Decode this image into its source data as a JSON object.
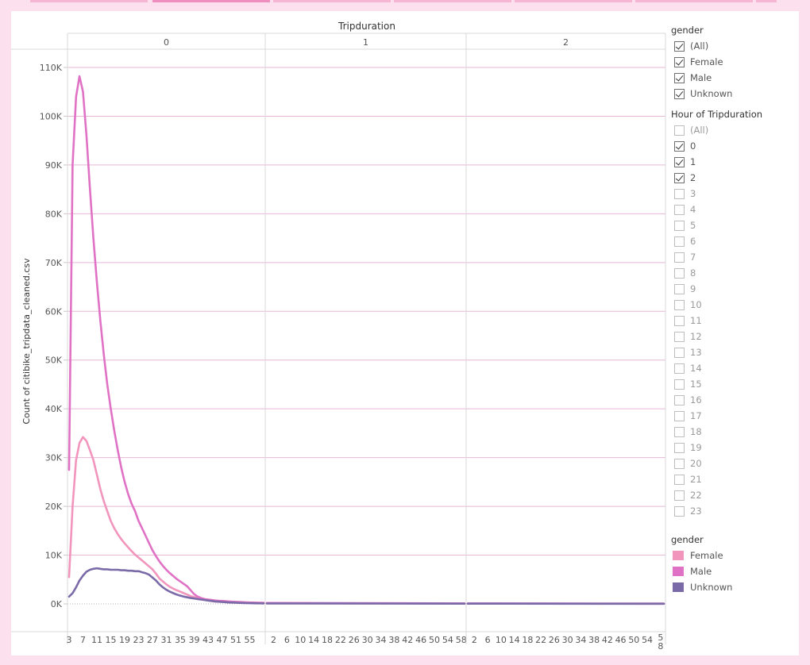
{
  "chart_data": {
    "type": "line",
    "column_header": "Tripduration",
    "ylabel": "Count of citibike_tripdata_cleaned.csv",
    "ylim": [
      0,
      115000
    ],
    "y_ticks": [
      0,
      10000,
      20000,
      30000,
      40000,
      50000,
      60000,
      70000,
      80000,
      90000,
      100000,
      110000
    ],
    "y_tick_labels": [
      "0K",
      "10K",
      "20K",
      "30K",
      "40K",
      "50K",
      "60K",
      "70K",
      "80K",
      "90K",
      "100K",
      "110K"
    ],
    "x_unit": "minute",
    "panels": [
      {
        "label": "0",
        "x_range": [
          3,
          59
        ],
        "x_tick_labels": [
          "3",
          "7",
          "11",
          "15",
          "19",
          "23",
          "27",
          "31",
          "35",
          "39",
          "43",
          "47",
          "51",
          "55"
        ]
      },
      {
        "label": "1",
        "x_range": [
          0,
          59
        ],
        "x_tick_labels": [
          "2",
          "6",
          "10",
          "14",
          "18",
          "22",
          "26",
          "30",
          "34",
          "38",
          "42",
          "46",
          "50",
          "54",
          "58"
        ]
      },
      {
        "label": "2",
        "x_range": [
          0,
          59
        ],
        "x_tick_labels": [
          "2",
          "6",
          "10",
          "14",
          "18",
          "22",
          "26",
          "30",
          "34",
          "38",
          "42",
          "46",
          "50",
          "54",
          "58"
        ]
      }
    ],
    "series": [
      {
        "name": "Female",
        "color": "#f195bc",
        "panel": "0",
        "x": [
          3,
          4,
          5,
          6,
          7,
          8,
          9,
          10,
          11,
          12,
          13,
          14,
          15,
          16,
          17,
          18,
          19,
          20,
          21,
          22,
          23,
          24,
          25,
          26,
          27,
          28,
          29,
          30,
          31,
          32,
          33,
          34,
          35,
          36,
          37,
          38,
          39,
          40,
          41,
          42,
          43,
          44,
          45,
          46,
          47,
          48,
          49,
          50,
          51,
          52,
          53,
          54,
          55,
          56,
          57,
          58,
          59
        ],
        "y": [
          5500,
          20000,
          29500,
          33000,
          34200,
          33400,
          31500,
          29500,
          26500,
          23500,
          21000,
          19000,
          17000,
          15500,
          14300,
          13300,
          12400,
          11600,
          10800,
          10100,
          9500,
          8900,
          8300,
          7700,
          7100,
          6200,
          5200,
          4600,
          4000,
          3500,
          3100,
          2800,
          2500,
          2200,
          1900,
          1600,
          1400,
          1200,
          1000,
          850,
          700,
          600,
          500,
          450,
          400,
          350,
          320,
          290,
          260,
          230,
          210,
          190,
          170,
          150,
          140,
          130,
          120
        ]
      },
      {
        "name": "Male",
        "color": "#e072c5",
        "panel": "0",
        "x": [
          3,
          4,
          5,
          6,
          7,
          8,
          9,
          10,
          11,
          12,
          13,
          14,
          15,
          16,
          17,
          18,
          19,
          20,
          21,
          22,
          23,
          24,
          25,
          26,
          27,
          28,
          29,
          30,
          31,
          32,
          33,
          34,
          35,
          36,
          37,
          38,
          39,
          40,
          41,
          42,
          43,
          44,
          45,
          46,
          47,
          48,
          49,
          50,
          51,
          52,
          53,
          54,
          55,
          56,
          57,
          58,
          59
        ],
        "y": [
          27500,
          90000,
          104000,
          108200,
          105000,
          96000,
          85000,
          75000,
          66000,
          58000,
          51000,
          45000,
          40000,
          35500,
          31500,
          28000,
          25000,
          22500,
          20500,
          19000,
          17000,
          15500,
          14000,
          12500,
          11000,
          9800,
          8700,
          7800,
          7000,
          6300,
          5700,
          5100,
          4600,
          4100,
          3600,
          2800,
          2000,
          1500,
          1200,
          1000,
          900,
          800,
          700,
          650,
          600,
          550,
          500,
          460,
          420,
          390,
          360,
          330,
          300,
          280,
          260,
          240,
          220
        ]
      },
      {
        "name": "Unknown",
        "color": "#7a6aa8",
        "panel": "0",
        "x": [
          3,
          4,
          5,
          6,
          7,
          8,
          9,
          10,
          11,
          12,
          13,
          14,
          15,
          16,
          17,
          18,
          19,
          20,
          21,
          22,
          23,
          24,
          25,
          26,
          27,
          28,
          29,
          30,
          31,
          32,
          33,
          34,
          35,
          36,
          37,
          38,
          39,
          40,
          41,
          42,
          43,
          44,
          45,
          46,
          47,
          48,
          49,
          50,
          51,
          52,
          53,
          54,
          55,
          56,
          57,
          58,
          59
        ],
        "y": [
          1500,
          2200,
          3400,
          4800,
          5800,
          6600,
          7000,
          7200,
          7300,
          7200,
          7100,
          7100,
          7000,
          7000,
          7000,
          6900,
          6900,
          6800,
          6800,
          6700,
          6700,
          6500,
          6300,
          6000,
          5400,
          4800,
          4000,
          3400,
          2900,
          2500,
          2200,
          1900,
          1700,
          1500,
          1350,
          1200,
          1100,
          1000,
          900,
          800,
          700,
          600,
          500,
          450,
          400,
          350,
          300,
          270,
          240,
          210,
          190,
          170,
          150,
          130,
          120,
          110,
          100
        ]
      },
      {
        "name": "Female",
        "color": "#f195bc",
        "panel": "1",
        "x": [
          0,
          59
        ],
        "y": [
          120,
          60
        ]
      },
      {
        "name": "Male",
        "color": "#e072c5",
        "panel": "1",
        "x": [
          0,
          59
        ],
        "y": [
          200,
          100
        ]
      },
      {
        "name": "Unknown",
        "color": "#7a6aa8",
        "panel": "1",
        "x": [
          0,
          59
        ],
        "y": [
          90,
          50
        ]
      },
      {
        "name": "Female",
        "color": "#f195bc",
        "panel": "2",
        "x": [
          0,
          59
        ],
        "y": [
          60,
          40
        ]
      },
      {
        "name": "Male",
        "color": "#e072c5",
        "panel": "2",
        "x": [
          0,
          59
        ],
        "y": [
          100,
          70
        ]
      },
      {
        "name": "Unknown",
        "color": "#7a6aa8",
        "panel": "2",
        "x": [
          0,
          59
        ],
        "y": [
          50,
          40
        ]
      }
    ],
    "grid": true,
    "legend_position": "right"
  },
  "filters": {
    "gender": {
      "title": "gender",
      "items": [
        {
          "label": "(All)",
          "checked": true
        },
        {
          "label": "Female",
          "checked": true
        },
        {
          "label": "Male",
          "checked": true
        },
        {
          "label": "Unknown",
          "checked": true
        }
      ]
    },
    "hour": {
      "title": "Hour of Tripduration",
      "items": [
        {
          "label": "(All)",
          "checked": false
        },
        {
          "label": "0",
          "checked": true
        },
        {
          "label": "1",
          "checked": true
        },
        {
          "label": "2",
          "checked": true
        },
        {
          "label": "3",
          "checked": false
        },
        {
          "label": "4",
          "checked": false
        },
        {
          "label": "5",
          "checked": false
        },
        {
          "label": "6",
          "checked": false
        },
        {
          "label": "7",
          "checked": false
        },
        {
          "label": "8",
          "checked": false
        },
        {
          "label": "9",
          "checked": false
        },
        {
          "label": "10",
          "checked": false
        },
        {
          "label": "11",
          "checked": false
        },
        {
          "label": "12",
          "checked": false
        },
        {
          "label": "13",
          "checked": false
        },
        {
          "label": "14",
          "checked": false
        },
        {
          "label": "15",
          "checked": false
        },
        {
          "label": "16",
          "checked": false
        },
        {
          "label": "17",
          "checked": false
        },
        {
          "label": "18",
          "checked": false
        },
        {
          "label": "19",
          "checked": false
        },
        {
          "label": "20",
          "checked": false
        },
        {
          "label": "21",
          "checked": false
        },
        {
          "label": "22",
          "checked": false
        },
        {
          "label": "23",
          "checked": false
        }
      ]
    }
  },
  "color_legend": {
    "title": "gender",
    "items": [
      {
        "label": "Female",
        "color": "#f195bc"
      },
      {
        "label": "Male",
        "color": "#e072c5"
      },
      {
        "label": "Unknown",
        "color": "#7a6aa8"
      }
    ]
  },
  "colors": {
    "background": "#fde0ee",
    "gridline": "#e7b7d6",
    "tab_active": "#ee8fbf",
    "tab_inactive": "#f6b6d3"
  }
}
